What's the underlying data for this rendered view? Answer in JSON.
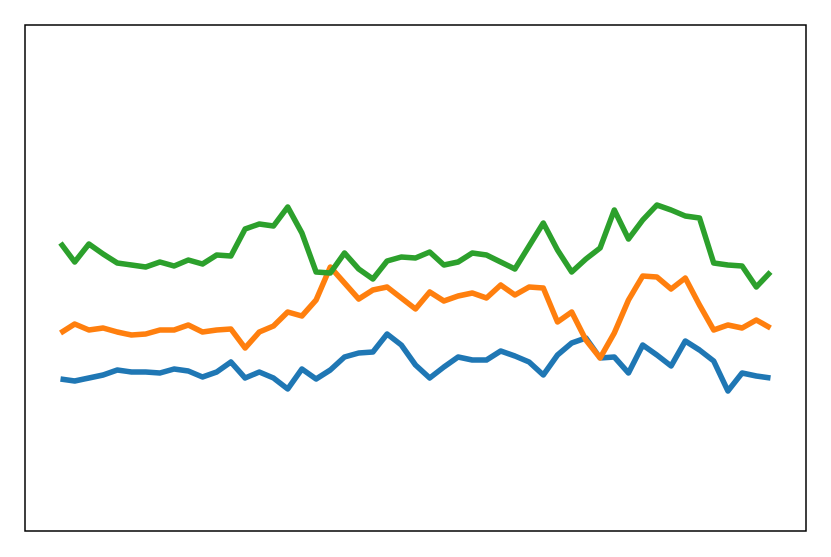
{
  "chart_data": {
    "type": "line",
    "x": [
      0,
      1,
      2,
      3,
      4,
      5,
      6,
      7,
      8,
      9,
      10,
      11,
      12,
      13,
      14,
      15,
      16,
      17,
      18,
      19,
      20,
      21,
      22,
      23,
      24,
      25,
      26,
      27,
      28,
      29,
      30,
      31,
      32,
      33,
      34,
      35,
      36,
      37,
      38,
      39,
      40,
      41,
      42,
      43,
      44,
      45,
      46,
      47,
      48,
      49,
      50
    ],
    "xlim": [
      -2.5,
      52.5
    ],
    "ylim": [
      0,
      506
    ],
    "series": [
      {
        "color": "#1f77b4",
        "values": [
          152,
          150,
          153,
          156,
          161,
          159,
          159,
          158,
          162,
          160,
          154,
          159,
          169,
          153,
          159,
          153,
          142,
          162,
          152,
          161,
          174,
          178,
          179,
          197,
          186,
          166,
          153,
          164,
          174,
          171,
          171,
          180,
          175,
          169,
          156,
          176,
          188,
          193,
          173,
          174,
          158,
          186,
          176,
          165,
          190,
          181,
          170,
          140,
          158,
          155,
          153
        ]
      },
      {
        "color": "#ff7f0e",
        "values": [
          198,
          207,
          201,
          203,
          199,
          196,
          197,
          201,
          201,
          206,
          199,
          201,
          202,
          183,
          199,
          205,
          219,
          215,
          231,
          264,
          248,
          232,
          241,
          244,
          233,
          222,
          239,
          230,
          235,
          238,
          233,
          246,
          236,
          244,
          243,
          209,
          219,
          191,
          173,
          198,
          231,
          255,
          254,
          242,
          253,
          226,
          201,
          206,
          203,
          211,
          203
        ]
      },
      {
        "color": "#2ca02c",
        "values": [
          288,
          269,
          287,
          277,
          268,
          266,
          264,
          269,
          265,
          271,
          267,
          276,
          275,
          302,
          307,
          305,
          324,
          298,
          259,
          258,
          278,
          262,
          252,
          270,
          274,
          273,
          279,
          266,
          269,
          278,
          276,
          269,
          262,
          285,
          308,
          281,
          259,
          272,
          283,
          321,
          292,
          311,
          326,
          321,
          315,
          313,
          268,
          266,
          265,
          244,
          259
        ]
      }
    ]
  }
}
